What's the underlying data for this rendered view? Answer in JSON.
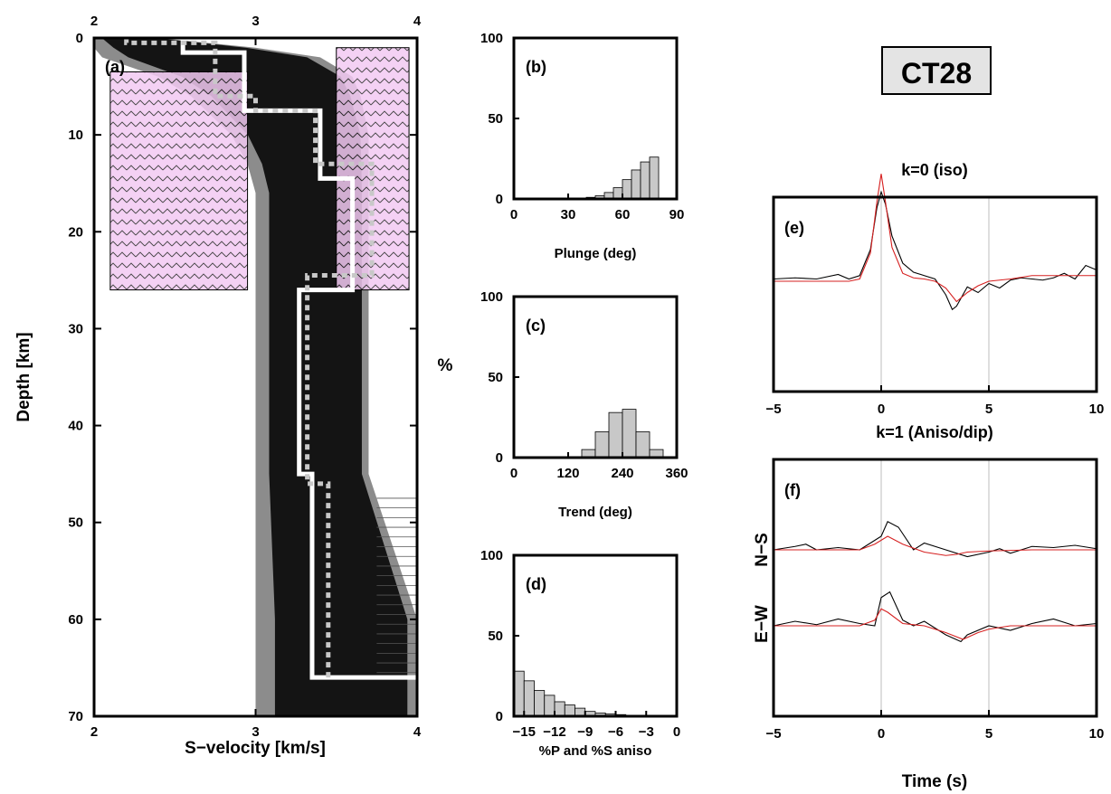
{
  "figure_label": "CT28",
  "chart_data": [
    {
      "id": "a",
      "type": "line",
      "panel_label": "(a)",
      "xlabel": "S−velocity [km/s]",
      "ylabel": "Depth [km]",
      "xlim": [
        2,
        4
      ],
      "ylim": [
        0,
        70
      ],
      "y_inverted": true,
      "xticks": [
        "2",
        "3",
        "4"
      ],
      "yticks": [
        "0",
        "10",
        "20",
        "30",
        "40",
        "50",
        "60",
        "70"
      ],
      "ensemble_envelope": {
        "depth": [
          0,
          1,
          2,
          4,
          6,
          10,
          13,
          16,
          20,
          25,
          26,
          45,
          50,
          60,
          66,
          68,
          70
        ],
        "vs_min": [
          2.0,
          2.0,
          2.05,
          2.4,
          2.6,
          2.85,
          2.95,
          3.0,
          3.0,
          3.0,
          3.0,
          3.0,
          3.0,
          3.0,
          3.0,
          3.0,
          3.0
        ],
        "vs_max": [
          2.4,
          3.0,
          3.4,
          3.6,
          3.65,
          3.7,
          3.7,
          3.7,
          3.7,
          3.7,
          3.7,
          3.7,
          3.8,
          4.0,
          4.0,
          4.0,
          4.0
        ]
      },
      "series": [
        {
          "style": "solid",
          "depth": [
            0,
            1.5,
            1.5,
            7.5,
            7.5,
            14.5,
            14.5,
            26,
            26,
            45,
            45,
            66,
            66
          ],
          "vs": [
            2.55,
            2.55,
            2.93,
            2.93,
            3.4,
            3.4,
            3.6,
            3.6,
            3.27,
            3.27,
            3.35,
            3.35,
            4.0
          ]
        },
        {
          "style": "dotted",
          "depth": [
            0,
            0.5,
            0.5,
            6,
            6,
            7.5,
            7.5,
            13,
            13,
            24.5,
            24.5,
            46,
            46,
            66
          ],
          "vs": [
            2.2,
            2.2,
            2.75,
            2.75,
            3.0,
            3.0,
            3.37,
            3.37,
            3.72,
            3.72,
            3.32,
            3.32,
            3.45,
            3.45
          ]
        }
      ],
      "prior_boxes": [
        {
          "vs": [
            2.1,
            2.95
          ],
          "depth": [
            3.5,
            26
          ]
        },
        {
          "vs": [
            3.5,
            3.95
          ],
          "depth": [
            1,
            26
          ]
        }
      ]
    },
    {
      "id": "b",
      "type": "bar",
      "panel_label": "(b)",
      "xlabel": "Plunge (deg)",
      "ylabel": "%",
      "xlim": [
        0,
        90
      ],
      "ylim": [
        0,
        100
      ],
      "xticks": [
        "0",
        "30",
        "60",
        "90"
      ],
      "yticks": [
        "0",
        "50",
        "100"
      ],
      "bin_edges": [
        30,
        35,
        40,
        45,
        50,
        55,
        60,
        65,
        70,
        75,
        80
      ],
      "values": [
        0.3,
        0.5,
        1,
        2,
        4,
        7,
        12,
        18,
        23,
        26
      ]
    },
    {
      "id": "c",
      "type": "bar",
      "panel_label": "(c)",
      "xlabel": "Trend (deg)",
      "ylabel": "%",
      "xlim": [
        0,
        360
      ],
      "ylim": [
        0,
        100
      ],
      "xticks": [
        "0",
        "120",
        "240",
        "360"
      ],
      "yticks": [
        "0",
        "50",
        "100"
      ],
      "bin_edges": [
        150,
        180,
        210,
        240,
        270,
        300,
        330
      ],
      "values": [
        5,
        16,
        28,
        30,
        16,
        5
      ]
    },
    {
      "id": "d",
      "type": "bar",
      "panel_label": "(d)",
      "xlabel": "%P and %S aniso",
      "ylabel": "%",
      "xlim": [
        -16,
        0
      ],
      "ylim": [
        0,
        100
      ],
      "xticks": [
        "−15",
        "−12",
        "−9",
        "−6",
        "−3",
        "0"
      ],
      "yticks": [
        "0",
        "50",
        "100"
      ],
      "bin_edges": [
        -16,
        -15,
        -14,
        -13,
        -12,
        -11,
        -10,
        -9,
        -8,
        -7,
        -6,
        -5,
        -4,
        -3,
        -2,
        -1
      ],
      "values": [
        28,
        22,
        16,
        13,
        9,
        7,
        5,
        3,
        2,
        1.5,
        1,
        0.5,
        0.3,
        0.2,
        0.1
      ]
    },
    {
      "id": "e",
      "type": "line",
      "panel_label": "(e)",
      "title": "k=0 (iso)",
      "xlim": [
        -5,
        10
      ],
      "xticks": [
        "−5",
        "0",
        "5",
        "10"
      ],
      "vlines": [
        0,
        5
      ],
      "series": [
        {
          "color": "#000000",
          "x": [
            -5,
            -4,
            -3,
            -2,
            -1.5,
            -1,
            -0.5,
            -0.2,
            0,
            0.2,
            0.5,
            1,
            1.5,
            2,
            2.5,
            3,
            3.3,
            3.5,
            4,
            4.5,
            5,
            5.5,
            6,
            6.5,
            7,
            7.5,
            8,
            8.5,
            9,
            9.5,
            10
          ],
          "y": [
            0.02,
            0.03,
            0.02,
            0.06,
            0.02,
            0.05,
            0.28,
            0.65,
            0.79,
            0.68,
            0.4,
            0.16,
            0.08,
            0.05,
            0.02,
            -0.12,
            -0.25,
            -0.22,
            -0.05,
            -0.1,
            -0.02,
            -0.06,
            0.01,
            0.03,
            0.02,
            0.01,
            0.03,
            0.07,
            0.02,
            0.14,
            0.1
          ]
        },
        {
          "color": "#d62020",
          "x": [
            -5,
            -3,
            -1.5,
            -1,
            -0.5,
            -0.2,
            0,
            0.2,
            0.5,
            1,
            1.5,
            2,
            2.5,
            3,
            3.5,
            4,
            4.5,
            5,
            6,
            7,
            8,
            9,
            10
          ],
          "y": [
            0.0,
            0.0,
            0.0,
            0.02,
            0.25,
            0.7,
            0.95,
            0.7,
            0.3,
            0.07,
            0.03,
            0.02,
            0.0,
            -0.06,
            -0.18,
            -0.1,
            -0.04,
            0.0,
            0.02,
            0.05,
            0.05,
            0.05,
            0.05
          ]
        }
      ]
    },
    {
      "id": "f",
      "type": "line",
      "panel_label": "(f)",
      "title": "k=1 (Aniso/dip)",
      "xlabel": "Time (s)",
      "xlim": [
        -5,
        10
      ],
      "xticks": [
        "−5",
        "0",
        "5",
        "10"
      ],
      "vlines": [
        0,
        5
      ],
      "traces": [
        {
          "label": "N−S",
          "series": [
            {
              "color": "#000000",
              "x": [
                -5,
                -4,
                -3.5,
                -3,
                -2,
                -1,
                0,
                0.3,
                0.8,
                1.5,
                2,
                3,
                4,
                5,
                5.5,
                6,
                7,
                8,
                9,
                10
              ],
              "y": [
                0.0,
                0.03,
                0.05,
                0.0,
                0.02,
                0.0,
                0.12,
                0.25,
                0.2,
                0.0,
                0.06,
                0.0,
                -0.06,
                -0.02,
                0.01,
                -0.03,
                0.03,
                0.02,
                0.04,
                0.01
              ]
            },
            {
              "color": "#d62020",
              "x": [
                -5,
                -1,
                -0.3,
                0.3,
                1,
                2,
                3,
                3.5,
                4,
                5,
                7,
                10
              ],
              "y": [
                0.0,
                0.0,
                0.05,
                0.12,
                0.05,
                -0.02,
                -0.05,
                -0.04,
                -0.02,
                -0.01,
                0.0,
                0.0
              ]
            }
          ]
        },
        {
          "label": "E−W",
          "series": [
            {
              "color": "#000000",
              "x": [
                -5,
                -4,
                -3,
                -2,
                -1,
                -0.3,
                0,
                0.4,
                1,
                1.5,
                2,
                3,
                3.7,
                4,
                5,
                6,
                7,
                8,
                9,
                10
              ],
              "y": [
                0.0,
                0.04,
                0.01,
                0.06,
                0.02,
                0.0,
                0.25,
                0.3,
                0.05,
                0.0,
                0.04,
                -0.08,
                -0.14,
                -0.08,
                0.0,
                -0.04,
                0.02,
                0.06,
                0.0,
                0.02
              ]
            },
            {
              "color": "#d62020",
              "x": [
                -5,
                -1,
                -0.3,
                0,
                0.3,
                1,
                2,
                3,
                3.8,
                4.5,
                5,
                6,
                10
              ],
              "y": [
                0.0,
                0.0,
                0.05,
                0.15,
                0.12,
                0.02,
                0.0,
                -0.06,
                -0.12,
                -0.06,
                -0.03,
                0.0,
                0.0
              ]
            }
          ]
        }
      ]
    }
  ]
}
